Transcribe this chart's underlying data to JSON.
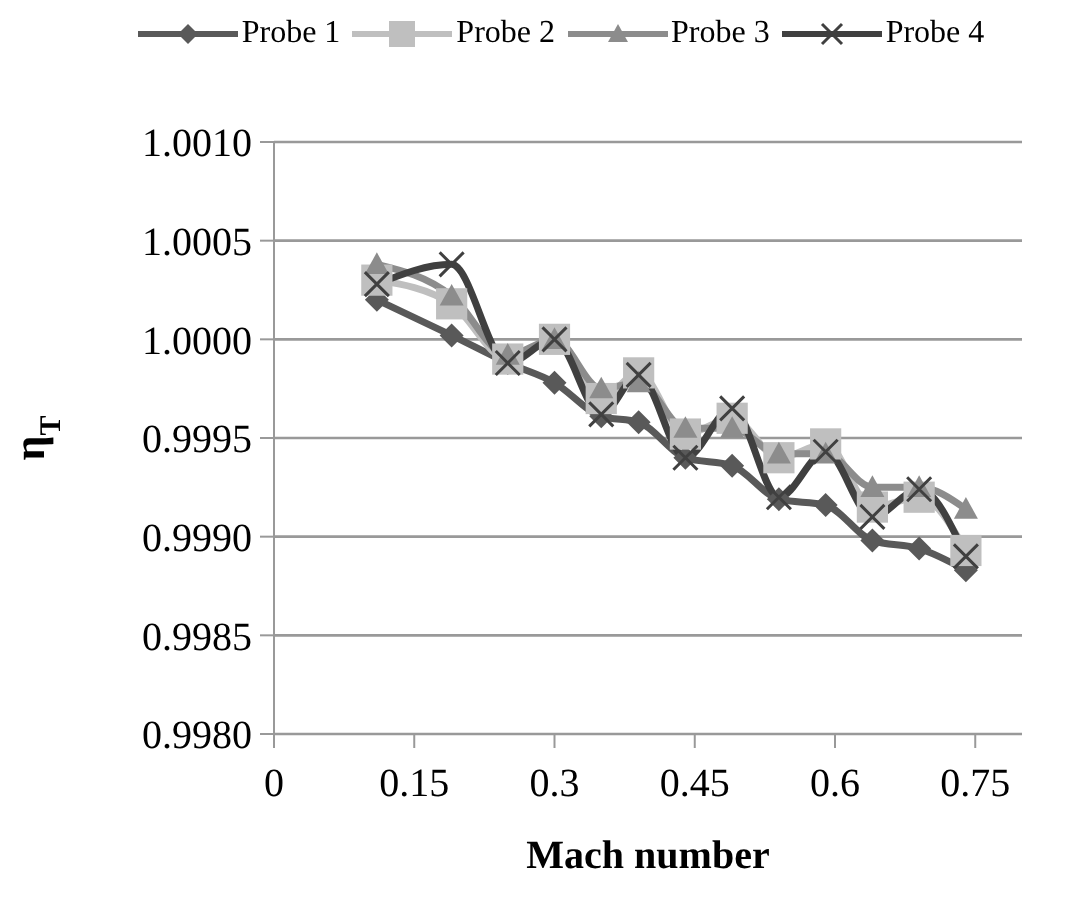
{
  "chart_data": {
    "type": "line",
    "xlabel": "Mach number",
    "ylabel": "η$_{T}$",
    "x": [
      0.11,
      0.19,
      0.25,
      0.3,
      0.35,
      0.39,
      0.44,
      0.49,
      0.54,
      0.59,
      0.64,
      0.69,
      0.74
    ],
    "series": [
      {
        "name": "Probe 1",
        "color": "#595959",
        "marker": "diamond",
        "values": [
          1.0002,
          1.00002,
          0.99988,
          0.99978,
          0.99961,
          0.99958,
          0.9994,
          0.99936,
          0.99919,
          0.99916,
          0.99898,
          0.99894,
          0.99883
        ]
      },
      {
        "name": "Probe 2",
        "color": "#bfbfbf",
        "marker": "square",
        "values": [
          1.0003,
          1.00018,
          0.9999,
          1.0,
          0.9997,
          0.99983,
          0.99952,
          0.9996,
          0.9994,
          0.99947,
          0.99915,
          0.9992,
          0.99893
        ]
      },
      {
        "name": "Probe 3",
        "color": "#8c8c8c",
        "marker": "triangle",
        "values": [
          1.00038,
          1.00022,
          0.99992,
          1.0,
          0.99975,
          0.99978,
          0.99955,
          0.99955,
          0.99942,
          0.99942,
          0.99925,
          0.99925,
          0.99914
        ]
      },
      {
        "name": "Probe 4",
        "color": "#404040",
        "marker": "cross",
        "values": [
          1.00028,
          1.00038,
          0.99988,
          1.0,
          0.99962,
          0.99982,
          0.9994,
          0.99965,
          0.9992,
          0.99943,
          0.9991,
          0.99924,
          0.9989
        ]
      }
    ],
    "xlim": [
      0,
      0.8
    ],
    "xticks": [
      0,
      0.15,
      0.3,
      0.45,
      0.6,
      0.75
    ],
    "ylim": [
      0.998,
      1.001
    ],
    "yticks": [
      {
        "value": 0.998,
        "label": "0.9980"
      },
      {
        "value": 0.9985,
        "label": "0.9985"
      },
      {
        "value": 0.999,
        "label": "0.9990"
      },
      {
        "value": 0.9995,
        "label": "0.9995"
      },
      {
        "value": 1.0,
        "label": "1.0000"
      },
      {
        "value": 1.0005,
        "label": "1.0005"
      },
      {
        "value": 1.001,
        "label": "1.0010"
      }
    ],
    "grid": "y",
    "legend": "top",
    "line_style": "solid"
  }
}
